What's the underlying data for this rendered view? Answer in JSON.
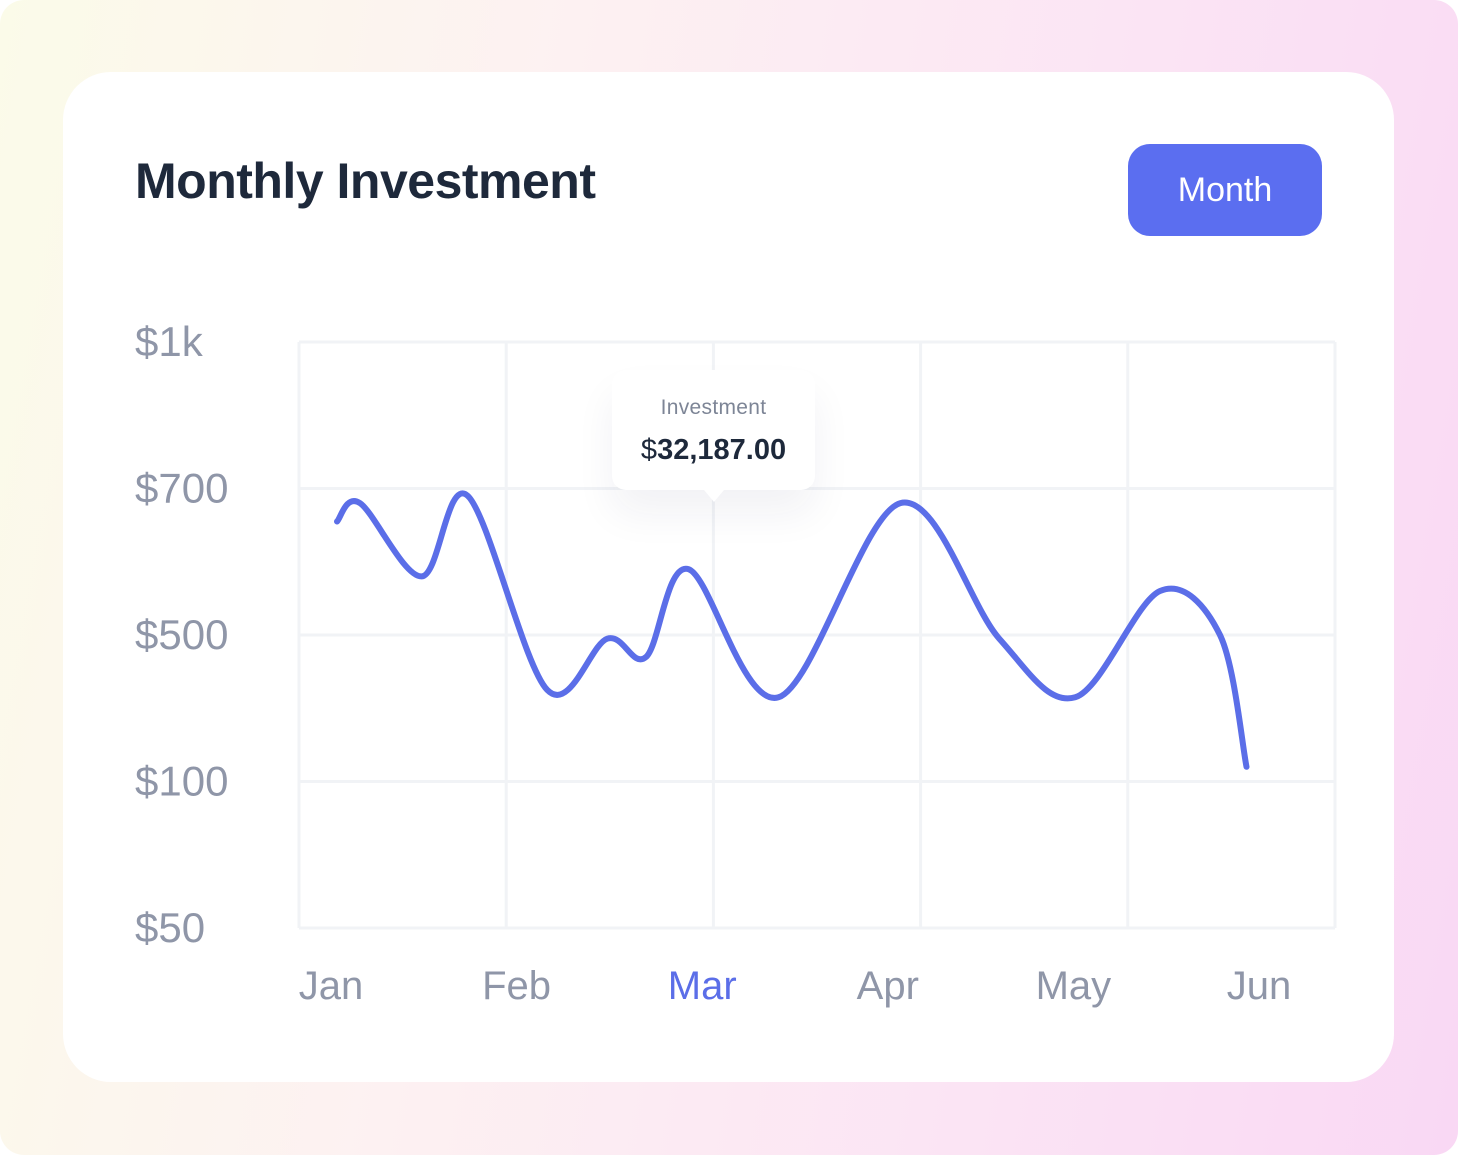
{
  "card": {
    "title": "Monthly Investment",
    "period_button": "Month"
  },
  "tooltip": {
    "label": "Investment",
    "currency": "$",
    "amount": "32,187.00"
  },
  "colors": {
    "accent": "#5b6ee8",
    "button": "#5b6ef0",
    "title": "#1e293b",
    "axis_text": "#8f96a8",
    "grid": "#f1f3f6"
  },
  "chart_data": {
    "type": "line",
    "title": "Monthly Investment",
    "xlabel": "",
    "ylabel": "",
    "categories": [
      "Jan",
      "Feb",
      "Mar",
      "Apr",
      "May",
      "Jun"
    ],
    "active_category": "Mar",
    "y_ticks": [
      "$1k",
      "$700",
      "$500",
      "$100",
      "$50"
    ],
    "y_tick_values": [
      1000,
      700,
      500,
      100,
      50
    ],
    "y_scale": "categorical-steps (equally spaced ticks)",
    "grid": true,
    "legend": "none",
    "series": [
      {
        "values": [
          {
            "x": 0.0,
            "y": 655
          },
          {
            "x": 0.13,
            "y": 680
          },
          {
            "x": 0.48,
            "y": 580
          },
          {
            "x": 0.74,
            "y": 690
          },
          {
            "x": 1.19,
            "y": 350
          },
          {
            "x": 1.53,
            "y": 490
          },
          {
            "x": 1.75,
            "y": 440
          },
          {
            "x": 1.99,
            "y": 590
          },
          {
            "x": 2.5,
            "y": 330
          },
          {
            "x": 3.19,
            "y": 680
          },
          {
            "x": 3.75,
            "y": 490
          },
          {
            "x": 4.18,
            "y": 330
          },
          {
            "x": 4.66,
            "y": 560
          },
          {
            "x": 5.0,
            "y": 500
          },
          {
            "x": 5.15,
            "y": 140
          }
        ]
      }
    ]
  }
}
